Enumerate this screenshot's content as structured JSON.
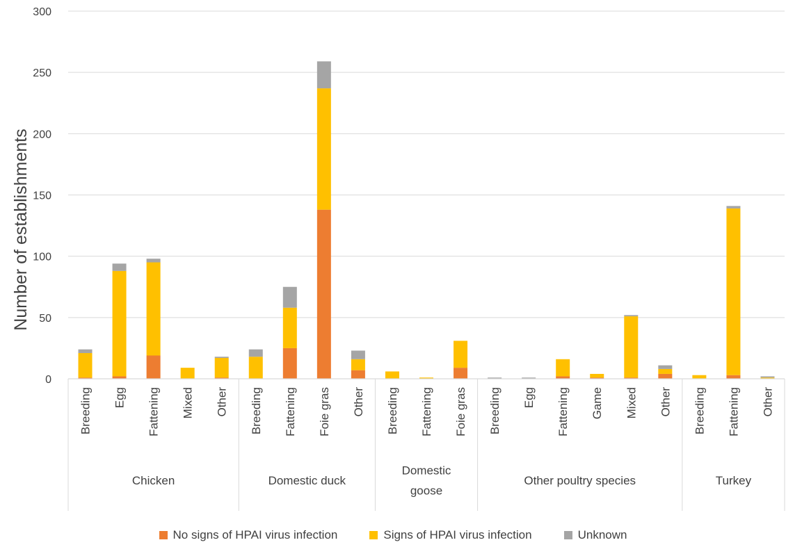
{
  "chart_data": {
    "type": "bar",
    "stacked": true,
    "title": "",
    "xlabel": "",
    "ylabel": "Number of establishments",
    "ylim": [
      0,
      300
    ],
    "yticks": [
      0,
      50,
      100,
      150,
      200,
      250,
      300
    ],
    "grid": true,
    "legend_position": "bottom",
    "groups": [
      {
        "name": "Chicken",
        "categories": [
          "Breeding",
          "Egg",
          "Fattening",
          "Mixed",
          "Other"
        ]
      },
      {
        "name": "Domestic duck",
        "categories": [
          "Breeding",
          "Fattening",
          "Foie gras",
          "Other"
        ]
      },
      {
        "name": "Domestic goose",
        "categories": [
          "Breeding",
          "Fattening",
          "Foie gras"
        ]
      },
      {
        "name": "Other poultry species",
        "categories": [
          "Breeding",
          "Egg",
          "Fattening",
          "Game",
          "Mixed",
          "Other"
        ]
      },
      {
        "name": "Turkey",
        "categories": [
          "Breeding",
          "Fattening",
          "Other"
        ]
      }
    ],
    "categories": [
      "Breeding",
      "Egg",
      "Fattening",
      "Mixed",
      "Other",
      "Breeding",
      "Fattening",
      "Foie gras",
      "Other",
      "Breeding",
      "Fattening",
      "Foie gras",
      "Breeding",
      "Egg",
      "Fattening",
      "Game",
      "Mixed",
      "Other",
      "Breeding",
      "Fattening",
      "Other"
    ],
    "series": [
      {
        "name": "No signs of HPAI virus infection",
        "color": "#ED7D31",
        "values": [
          1,
          2,
          19,
          0,
          1,
          0,
          25,
          138,
          7,
          0,
          0,
          9,
          0,
          0,
          2,
          1,
          1,
          4,
          0,
          3,
          0
        ]
      },
      {
        "name": "Signs of HPAI virus infection",
        "color": "#FFC000",
        "values": [
          20,
          86,
          76,
          9,
          16,
          18,
          33,
          99,
          9,
          6,
          1,
          22,
          0,
          0,
          14,
          3,
          50,
          4,
          3,
          136,
          1
        ]
      },
      {
        "name": "Unknown",
        "color": "#A5A5A5",
        "values": [
          3,
          6,
          3,
          0,
          1,
          6,
          17,
          22,
          7,
          0,
          0,
          0,
          1,
          1,
          0,
          0,
          1,
          3,
          0,
          2,
          1
        ]
      }
    ]
  }
}
